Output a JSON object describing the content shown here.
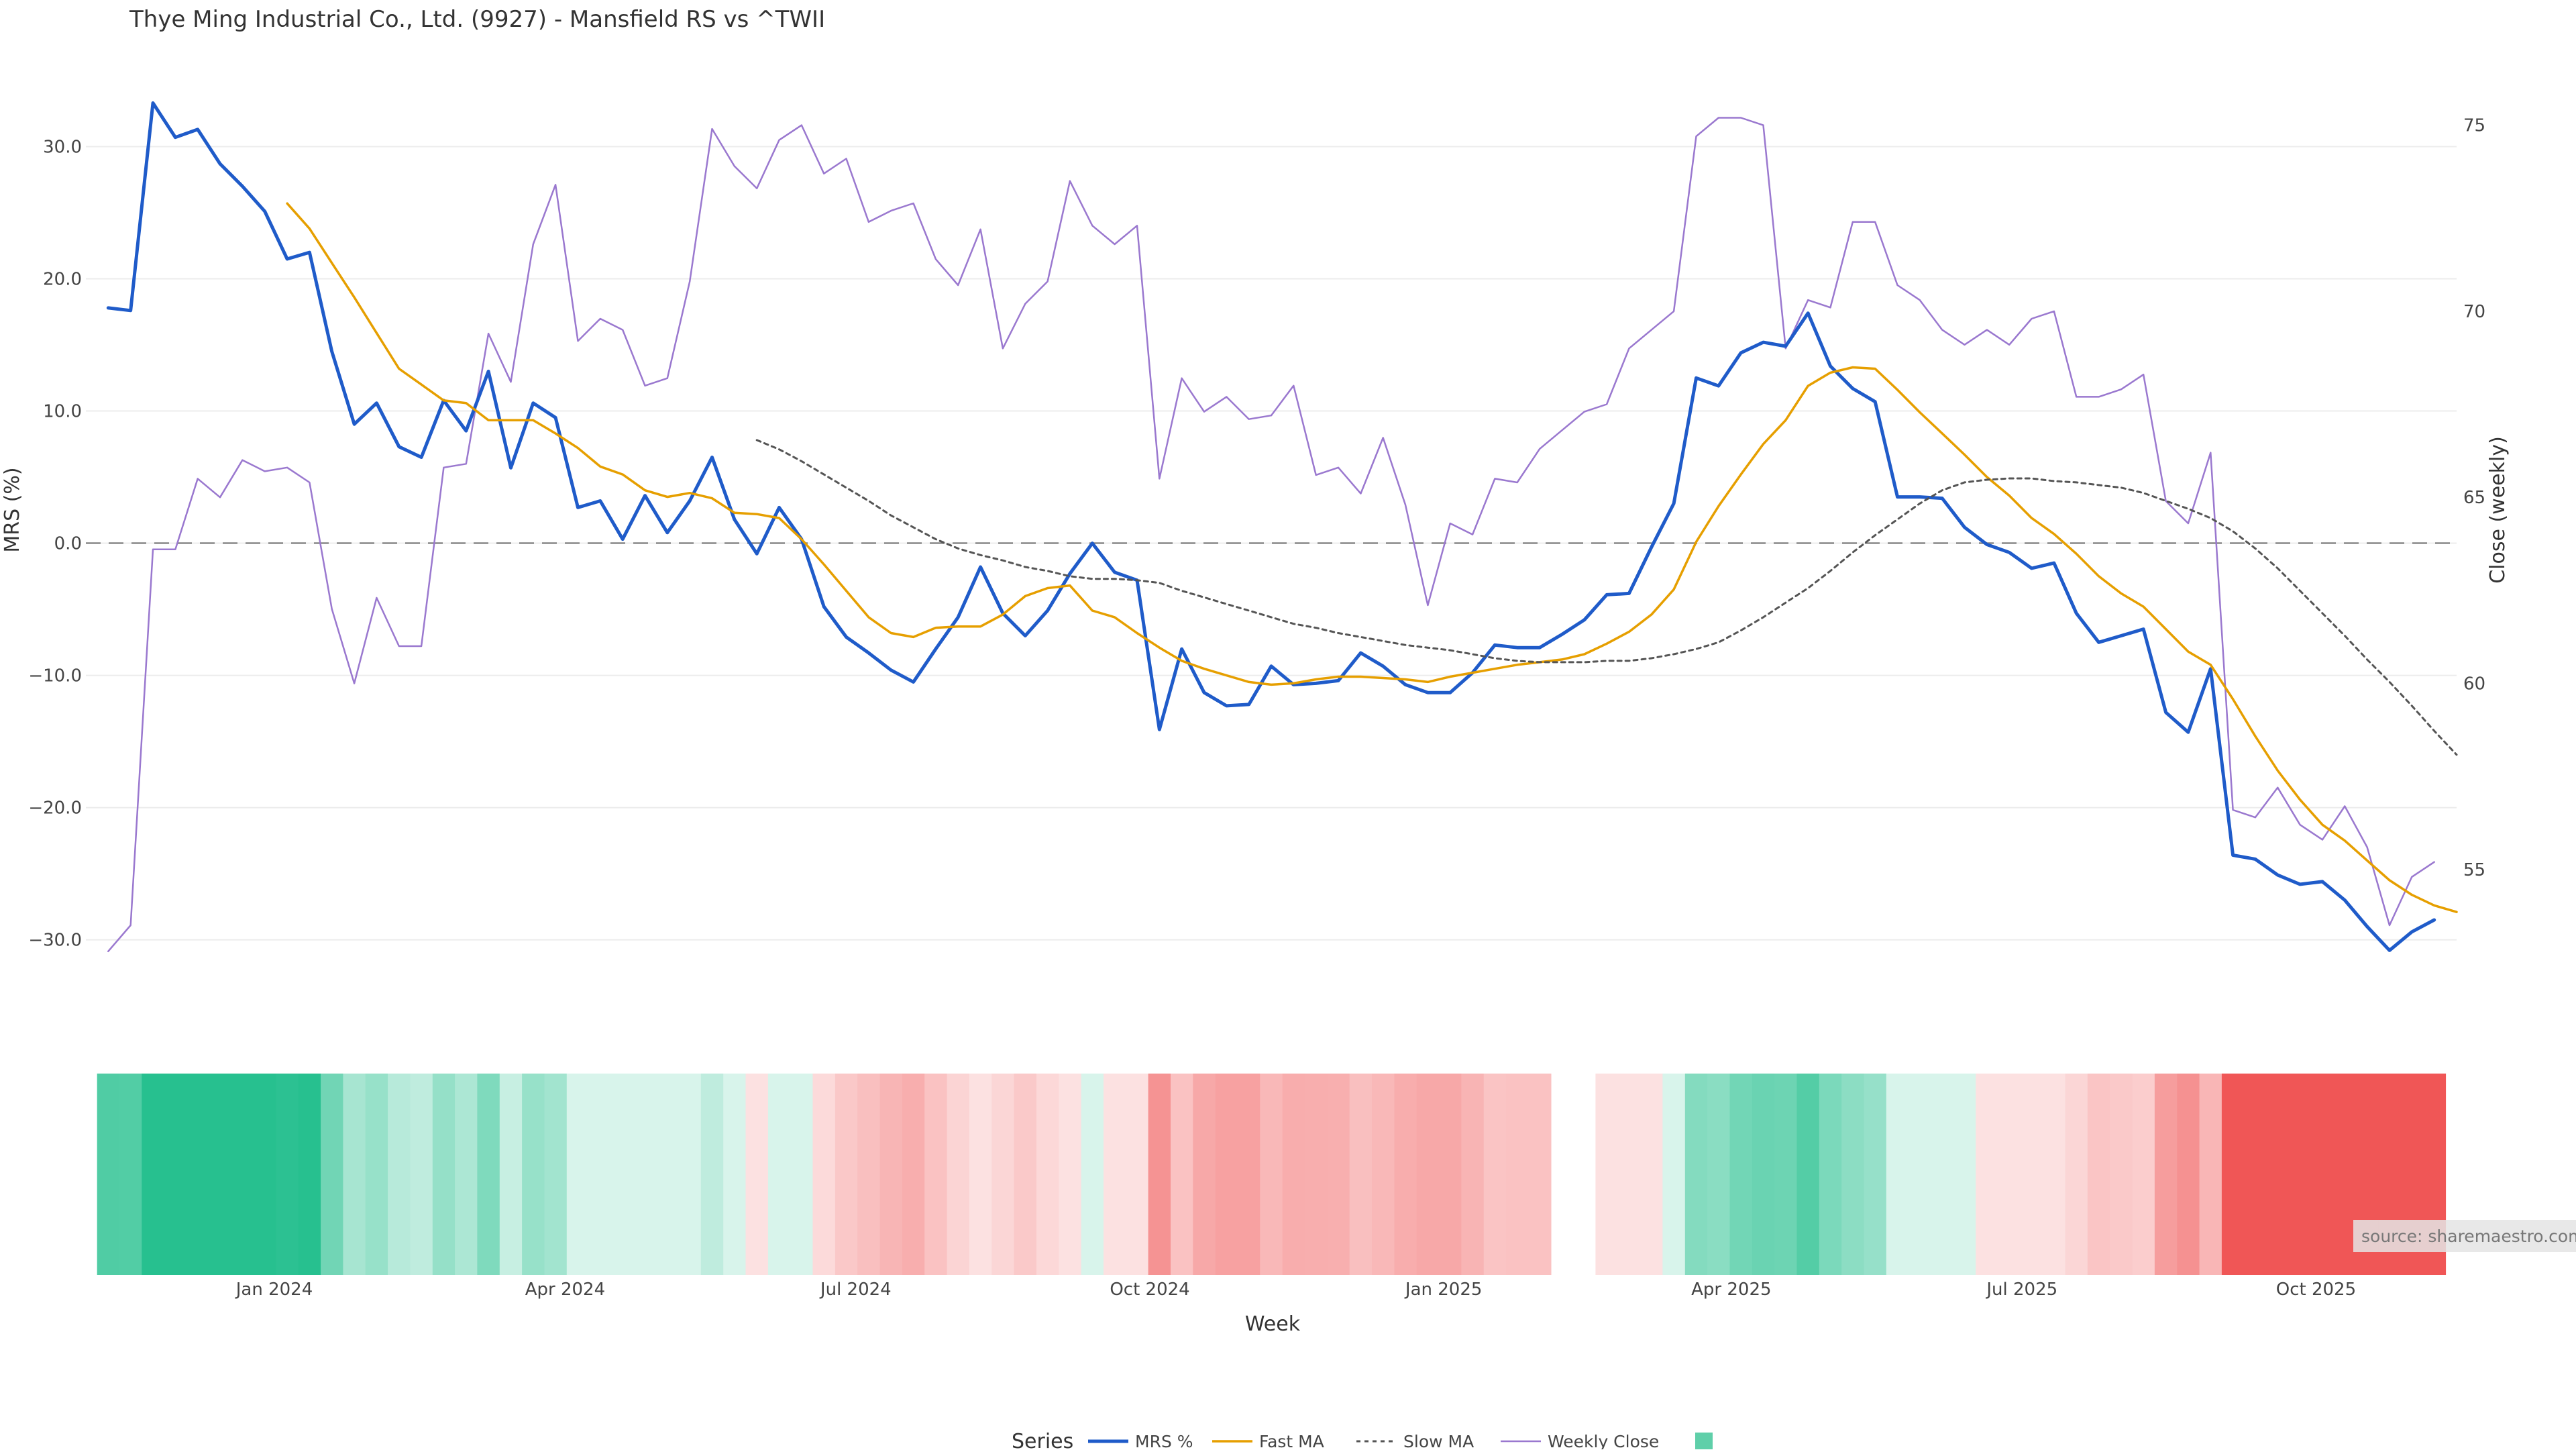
{
  "chart_data": {
    "type": "line",
    "title": "Thye Ming Industrial Co., Ltd. (9927) - Mansfield RS vs ^TWII",
    "xlabel": "Week",
    "ylabel_left": "MRS (%)",
    "ylabel_right": "Close (weekly)",
    "y_left_ticks": [
      "30.0",
      "20.0",
      "10.0",
      "0.0",
      "−10.0",
      "−20.0",
      "−30.0"
    ],
    "y_left_tick_values": [
      30,
      20,
      10,
      0,
      -10,
      -20,
      -30
    ],
    "y_left_range": [
      -32,
      35
    ],
    "y_right_ticks": [
      "75",
      "70",
      "65",
      "60",
      "55"
    ],
    "y_right_tick_values": [
      75,
      70,
      65,
      60,
      55
    ],
    "y_right_range": [
      52.4,
      76.2
    ],
    "x_range": [
      "2023-11-03",
      "2025-11-14"
    ],
    "x_ticks": [
      {
        "label": "Jan 2024",
        "date": "2024-01-01"
      },
      {
        "label": "Apr 2024",
        "date": "2024-04-01"
      },
      {
        "label": "Jul 2024",
        "date": "2024-07-01"
      },
      {
        "label": "Oct 2024",
        "date": "2024-10-01"
      },
      {
        "label": "Jan 2025",
        "date": "2025-01-01"
      },
      {
        "label": "Apr 2025",
        "date": "2025-04-01"
      },
      {
        "label": "Jul 2025",
        "date": "2025-07-01"
      },
      {
        "label": "Oct 2025",
        "date": "2025-10-01"
      }
    ],
    "zero_line": true,
    "grid": true,
    "series": [
      {
        "name": "MRS %",
        "color": "#1f5bc9",
        "style": "solid",
        "axis": "left",
        "start": "2023-11-10",
        "step_days": 7,
        "values": [
          17.8,
          17.6,
          33.3,
          30.7,
          31.3,
          28.7,
          27.0,
          25.1,
          21.5,
          22.0,
          14.5,
          9.0,
          10.6,
          7.3,
          6.5,
          10.8,
          8.5,
          13.0,
          5.7,
          10.6,
          9.5,
          2.7,
          3.2,
          0.3,
          3.6,
          0.8,
          3.2,
          6.5,
          1.8,
          -0.8,
          2.7,
          0.3,
          -4.8,
          -7.1,
          -8.3,
          -9.6,
          -10.5,
          -8.0,
          -5.6,
          -1.8,
          -5.3,
          -7.0,
          -5.1,
          -2.3,
          0.0,
          -2.2,
          -2.8,
          -14.1,
          -8.0,
          -11.3,
          -12.3,
          -12.2,
          -9.3,
          -10.7,
          -10.6,
          -10.4,
          -8.3,
          -9.3,
          -10.7,
          -11.3,
          -11.3,
          -9.8,
          -7.7,
          -7.9,
          -7.9,
          -6.9,
          -5.8,
          -3.9,
          -3.8,
          -0.3,
          3.0,
          12.5,
          11.9,
          14.4,
          15.2,
          14.9,
          17.4,
          13.4,
          11.7,
          10.7,
          3.5,
          3.5,
          3.4,
          1.2,
          -0.1,
          -0.7,
          -1.9,
          -1.5,
          -5.3,
          -7.5,
          -7.0,
          -6.5,
          -12.8,
          -14.3,
          -9.5,
          -23.6,
          -23.9,
          -25.1,
          -25.8,
          -25.6,
          -27.0,
          -29.0,
          -30.8,
          -29.4,
          -28.5
        ]
      },
      {
        "name": "Fast MA",
        "color": "#e69f00",
        "style": "solid",
        "axis": "left",
        "start": "2024-01-05",
        "step_days": 7,
        "values": [
          25.7,
          23.8,
          21.2,
          18.6,
          15.9,
          13.2,
          12.0,
          10.8,
          10.6,
          9.3,
          9.3,
          9.3,
          8.3,
          7.2,
          5.8,
          5.2,
          4.0,
          3.5,
          3.8,
          3.4,
          2.3,
          2.2,
          1.9,
          0.3,
          -1.6,
          -3.6,
          -5.6,
          -6.8,
          -7.1,
          -6.4,
          -6.3,
          -6.3,
          -5.4,
          -4.0,
          -3.4,
          -3.2,
          -5.1,
          -5.6,
          -6.8,
          -7.9,
          -8.9,
          -9.5,
          -10.0,
          -10.5,
          -10.7,
          -10.6,
          -10.3,
          -10.1,
          -10.1,
          -10.2,
          -10.3,
          -10.5,
          -10.1,
          -9.8,
          -9.5,
          -9.2,
          -9.0,
          -8.8,
          -8.4,
          -7.6,
          -6.7,
          -5.4,
          -3.5,
          0.1,
          2.8,
          5.2,
          7.5,
          9.3,
          11.9,
          12.9,
          13.3,
          13.2,
          11.6,
          9.9,
          8.3,
          6.7,
          5.0,
          3.6,
          1.9,
          0.7,
          -0.8,
          -2.5,
          -3.8,
          -4.8,
          -6.5,
          -8.2,
          -9.2,
          -11.8,
          -14.6,
          -17.2,
          -19.4,
          -21.3,
          -22.5,
          -24.0,
          -25.5,
          -26.6,
          -27.4,
          -27.9
        ]
      },
      {
        "name": "Slow MA",
        "color": "#555555",
        "style": "dotted",
        "axis": "left",
        "start": "2024-05-31",
        "step_days": 7,
        "values": [
          7.8,
          7.1,
          6.2,
          5.2,
          4.2,
          3.2,
          2.1,
          1.2,
          0.3,
          -0.4,
          -0.9,
          -1.3,
          -1.8,
          -2.1,
          -2.5,
          -2.7,
          -2.7,
          -2.8,
          -3.0,
          -3.6,
          -4.1,
          -4.6,
          -5.1,
          -5.6,
          -6.1,
          -6.4,
          -6.8,
          -7.1,
          -7.4,
          -7.7,
          -7.9,
          -8.1,
          -8.4,
          -8.7,
          -8.9,
          -9.0,
          -9.0,
          -9.0,
          -8.9,
          -8.9,
          -8.7,
          -8.4,
          -8.0,
          -7.5,
          -6.6,
          -5.6,
          -4.5,
          -3.4,
          -2.1,
          -0.7,
          0.6,
          1.8,
          3.0,
          4.0,
          4.6,
          4.8,
          4.9,
          4.9,
          4.7,
          4.6,
          4.4,
          4.2,
          3.8,
          3.2,
          2.6,
          1.9,
          0.9,
          -0.4,
          -1.9,
          -3.6,
          -5.3,
          -7.0,
          -8.8,
          -10.5,
          -12.3,
          -14.2,
          -16.0
        ]
      },
      {
        "name": "Weekly Close",
        "color": "#9a78cf",
        "style": "solid",
        "axis": "right",
        "start": "2023-11-10",
        "step_days": 7,
        "values": [
          52.8,
          53.5,
          63.6,
          63.6,
          65.5,
          65.0,
          66.0,
          65.7,
          65.8,
          65.4,
          62.0,
          60.0,
          62.3,
          61.0,
          61.0,
          65.8,
          65.9,
          69.4,
          68.1,
          71.8,
          73.4,
          69.2,
          69.8,
          69.5,
          68.0,
          68.2,
          70.8,
          74.9,
          73.9,
          73.3,
          74.6,
          75.0,
          73.7,
          74.1,
          72.4,
          72.7,
          72.9,
          71.4,
          70.7,
          72.2,
          69.0,
          70.2,
          70.8,
          73.5,
          72.3,
          71.8,
          72.3,
          65.5,
          68.2,
          67.3,
          67.7,
          67.1,
          67.2,
          68.0,
          65.6,
          65.8,
          65.1,
          66.6,
          64.8,
          62.1,
          64.3,
          64.0,
          65.5,
          65.4,
          66.3,
          66.8,
          67.3,
          67.5,
          69.0,
          69.5,
          70.0,
          74.7,
          75.2,
          75.2,
          75.0,
          69.0,
          70.3,
          70.1,
          72.4,
          72.4,
          70.7,
          70.3,
          69.5,
          69.1,
          69.5,
          69.1,
          69.8,
          70.0,
          67.7,
          67.7,
          67.9,
          68.3,
          64.9,
          64.3,
          66.2,
          56.6,
          56.4,
          57.2,
          56.2,
          55.8,
          56.7,
          55.6,
          53.5,
          54.8,
          55.2
        ]
      }
    ],
    "regime_strip": {
      "description_colors": "green = positive MRS, red = negative MRS",
      "gap": [
        "2025-02-07",
        "2025-02-14"
      ]
    },
    "legend": {
      "title": "Series",
      "placement": "bottom-center",
      "entries": [
        "MRS %",
        "Fast MA",
        "Slow MA",
        "Weekly Close",
        ""
      ]
    },
    "source_label": "source: sharemaestro.com"
  },
  "colors": {
    "positive_strip": "#27c08f",
    "negative_strip": "#f05656",
    "grid": "#ececec",
    "zero_line": "#888888"
  }
}
